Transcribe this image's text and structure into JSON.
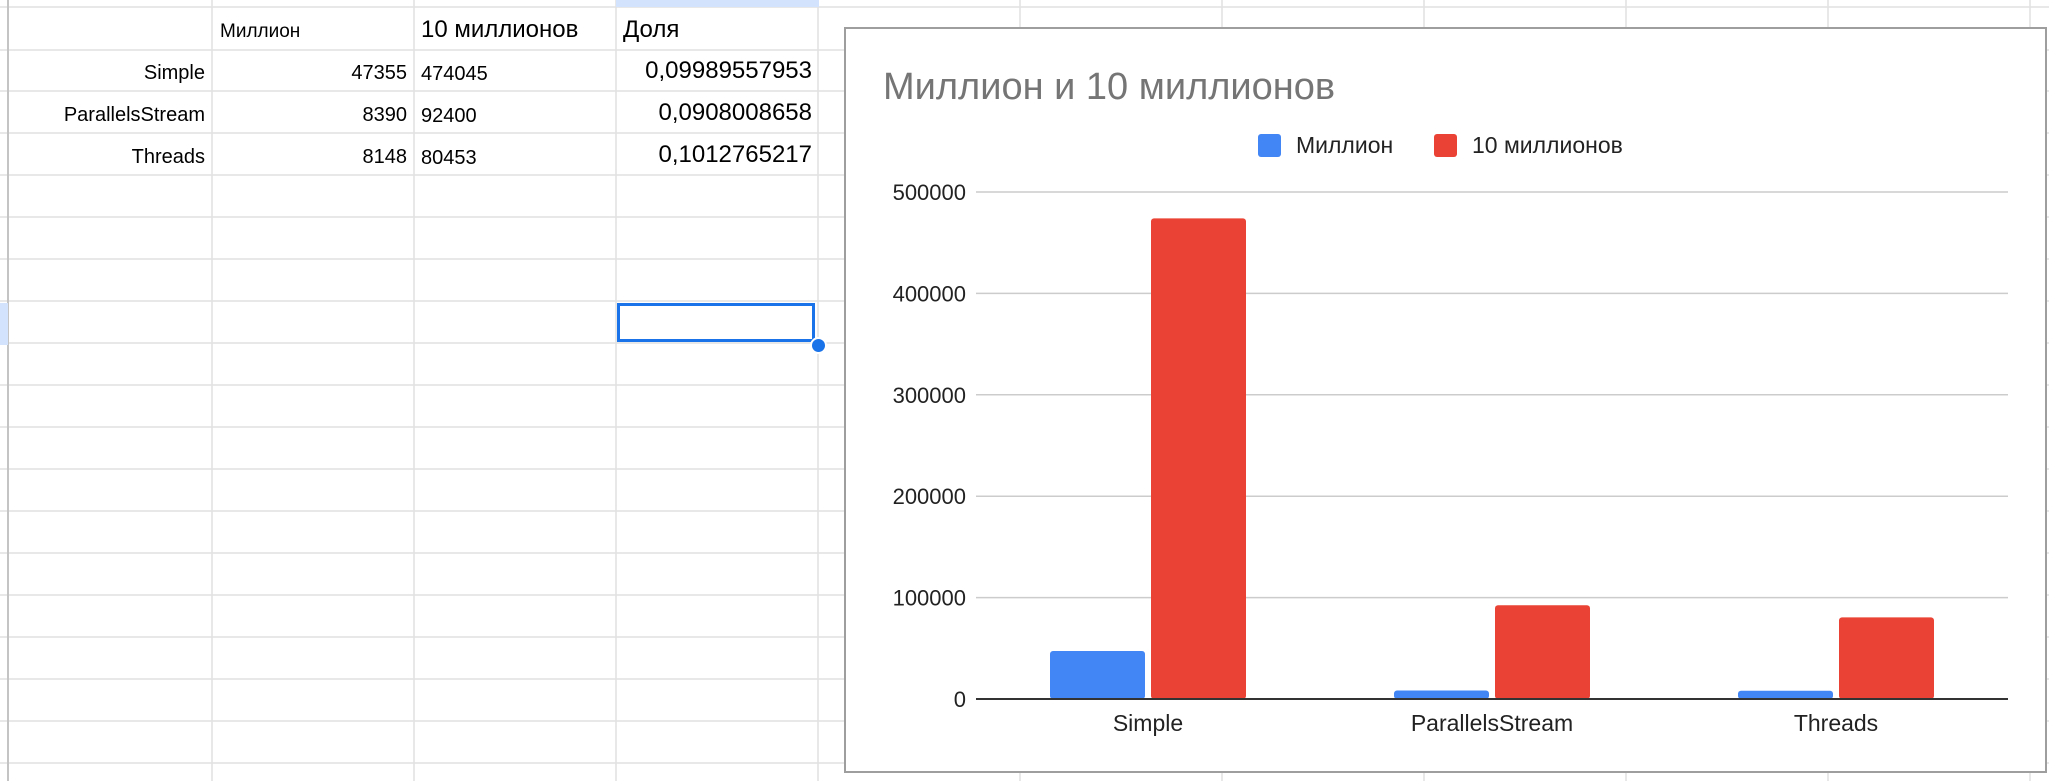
{
  "sheet": {
    "headers": {
      "col_c": "Миллион",
      "col_d": "10 миллионов",
      "col_e": "Доля"
    },
    "rows": [
      {
        "label": "Simple",
        "million": "47355",
        "ten_million": "474045",
        "share": "0,09989557953"
      },
      {
        "label": "ParallelsStream",
        "million": "8390",
        "ten_million": "92400",
        "share": "0,0908008658"
      },
      {
        "label": "Threads",
        "million": "8148",
        "ten_million": "80453",
        "share": "0,1012765217"
      }
    ]
  },
  "chart_data": {
    "type": "bar",
    "title": "Миллион и 10 миллионов",
    "categories": [
      "Simple",
      "ParallelsStream",
      "Threads"
    ],
    "series": [
      {
        "name": "Миллион",
        "color": "#4285f4",
        "values": [
          47355,
          8390,
          8148
        ]
      },
      {
        "name": "10 миллионов",
        "color": "#ea4335",
        "values": [
          474045,
          92400,
          80453
        ]
      }
    ],
    "ylim": [
      0,
      500000
    ],
    "yticks": [
      0,
      100000,
      200000,
      300000,
      400000,
      500000
    ],
    "legend": "top",
    "grid": true
  }
}
